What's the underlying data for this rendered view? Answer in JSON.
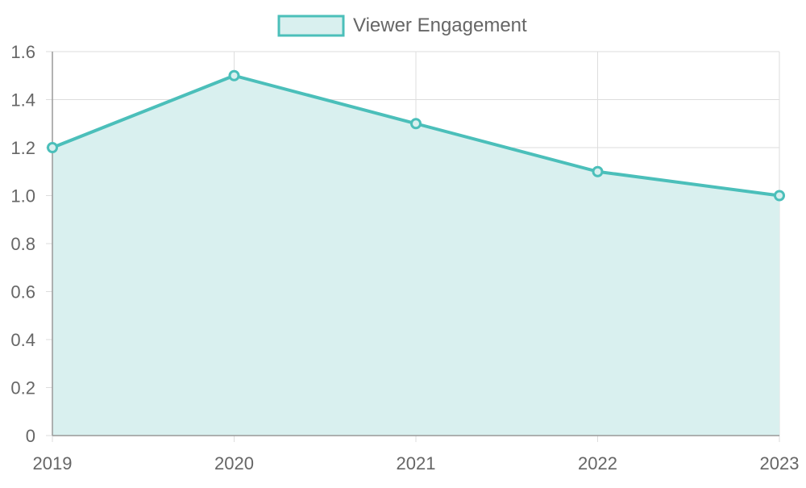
{
  "chart_data": {
    "type": "area",
    "title": "",
    "xlabel": "",
    "ylabel": "",
    "categories": [
      "2019",
      "2020",
      "2021",
      "2022",
      "2023"
    ],
    "series": [
      {
        "name": "Viewer Engagement",
        "values": [
          1.2,
          1.5,
          1.3,
          1.1,
          1.0
        ]
      }
    ],
    "ylim": [
      0,
      1.6
    ],
    "y_ticks": [
      0,
      0.2,
      0.4,
      0.6,
      0.8,
      1.0,
      1.2,
      1.4,
      1.6
    ],
    "y_tick_labels": [
      "0",
      "0.2",
      "0.4",
      "0.6",
      "0.8",
      "1.0",
      "1.2",
      "1.4",
      "1.6"
    ],
    "grid": true,
    "legend_position": "top",
    "colors": {
      "line": "#4bbfba",
      "fill": "#d9f0ef",
      "grid": "#dddddd",
      "axis": "#999999",
      "text": "#666666"
    }
  }
}
